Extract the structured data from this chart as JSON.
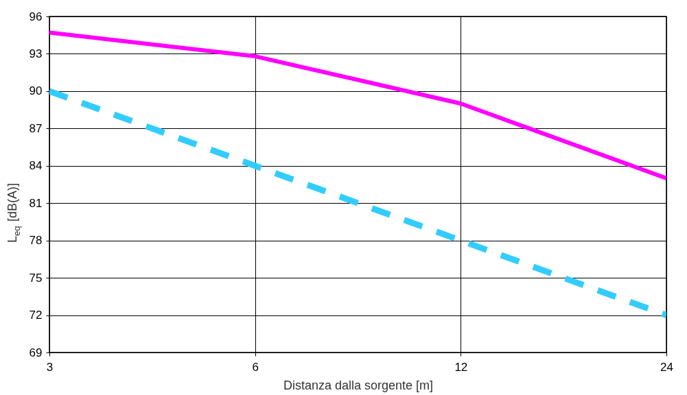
{
  "chart_data": {
    "type": "line",
    "xlabel": "Distanza dalla sorgente [m]",
    "ylabel": "L$_{eq}$ [dB(A)]",
    "categories": [
      "3",
      "6",
      "12",
      "24"
    ],
    "series": [
      {
        "color": "#ff00ff",
        "line_style": "solid",
        "values": [
          94.7,
          92.8,
          89.0,
          83.0
        ]
      },
      {
        "color": "#33ccff",
        "line_style": "dashed",
        "values": [
          90.0,
          84.0,
          78.0,
          72.0
        ]
      }
    ],
    "ylim": [
      69,
      96
    ],
    "yticks": [
      69,
      72,
      75,
      78,
      81,
      84,
      87,
      90,
      93,
      96
    ],
    "grid": true,
    "marker": "none"
  }
}
